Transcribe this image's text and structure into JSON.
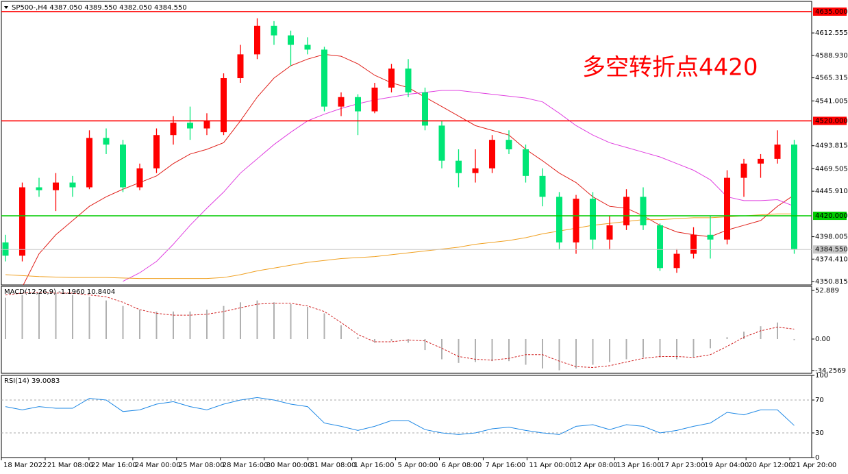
{
  "chart_data": [
    {
      "type": "candlestick",
      "title": "SP500-,H4  4387.050 4389.550 4382.050 4384.550",
      "annotation": "多空转折点4420",
      "up_color": "#ff0000",
      "down_color": "#00e676",
      "open": [
        4392,
        4378,
        4450,
        4447,
        4455,
        4450,
        4502,
        4495,
        4450,
        4470,
        4505,
        4518,
        4512,
        4508,
        4565,
        4590,
        4620,
        4610,
        4600,
        4595,
        4535,
        4545,
        4530,
        4555,
        4575,
        4550,
        4515,
        4478,
        4465,
        4470,
        4500,
        4490,
        4462,
        4440,
        4392,
        4438,
        4395,
        4410,
        4440,
        4410,
        4365,
        4380,
        4400,
        4395,
        4460,
        4475,
        4480,
        4495
      ],
      "high": [
        4400,
        4455,
        4460,
        4465,
        4462,
        4510,
        4512,
        4500,
        4475,
        4512,
        4525,
        4535,
        4528,
        4570,
        4600,
        4628,
        4625,
        4615,
        4608,
        4598,
        4550,
        4548,
        4560,
        4580,
        4585,
        4555,
        4520,
        4490,
        4490,
        4505,
        4510,
        4495,
        4470,
        4445,
        4442,
        4445,
        4420,
        4448,
        4450,
        4412,
        4385,
        4408,
        4420,
        4468,
        4480,
        4485,
        4510,
        4500
      ],
      "low": [
        4372,
        4372,
        4440,
        4425,
        4440,
        4448,
        4485,
        4445,
        4447,
        4465,
        4495,
        4500,
        4505,
        4505,
        4560,
        4585,
        4600,
        4578,
        4590,
        4530,
        4525,
        4505,
        4528,
        4550,
        4545,
        4510,
        4470,
        4450,
        4455,
        4465,
        4485,
        4455,
        4430,
        4385,
        4380,
        4385,
        4385,
        4405,
        4405,
        4362,
        4360,
        4375,
        4375,
        4390,
        4440,
        4460,
        4475,
        4380
      ],
      "close": [
        4378,
        4450,
        4447,
        4455,
        4450,
        4502,
        4495,
        4450,
        4470,
        4505,
        4518,
        4512,
        4520,
        4565,
        4590,
        4620,
        4610,
        4600,
        4595,
        4535,
        4545,
        4530,
        4555,
        4575,
        4550,
        4515,
        4478,
        4465,
        4470,
        4500,
        4490,
        4462,
        4440,
        4392,
        4438,
        4395,
        4410,
        4440,
        4410,
        4365,
        4380,
        4400,
        4395,
        4460,
        4475,
        4480,
        4495,
        4385
      ],
      "lines": [
        {
          "color": "#e0201a",
          "values": [
            null,
            4345,
            4380,
            4400,
            4415,
            4430,
            4440,
            4448,
            4455,
            4462,
            4475,
            4485,
            4490,
            4497,
            4520,
            4545,
            4565,
            4578,
            4585,
            4590,
            4588,
            4580,
            4568,
            4560,
            4555,
            4545,
            4535,
            4525,
            4515,
            4510,
            4505,
            4490,
            4478,
            4465,
            4455,
            4440,
            4430,
            4428,
            4420,
            4410,
            4403,
            4400,
            4398,
            4405,
            4410,
            4415,
            4430,
            4442
          ]
        },
        {
          "color": "#e040e0",
          "values": [
            null,
            null,
            null,
            null,
            null,
            null,
            null,
            4351,
            4360,
            4372,
            4390,
            4410,
            4428,
            4445,
            4465,
            4480,
            4495,
            4508,
            4520,
            4527,
            4533,
            4538,
            4542,
            4545,
            4548,
            4550,
            4552,
            4552,
            4550,
            4548,
            4546,
            4544,
            4540,
            4528,
            4515,
            4505,
            4497,
            4492,
            4487,
            4482,
            4475,
            4468,
            4458,
            4440,
            4436,
            4436,
            4437,
            4430
          ]
        },
        {
          "color": "#f0a020",
          "values": [
            4358,
            4357,
            4356,
            4355.5,
            4355,
            4355,
            4355,
            4354.5,
            4354,
            4354,
            4354,
            4354,
            4354,
            4355,
            4358,
            4362,
            4365,
            4368,
            4371,
            4373,
            4375,
            4376,
            4377,
            4379,
            4381,
            4383,
            4385,
            4387,
            4390,
            4392,
            4394,
            4397,
            4401,
            4404,
            4407,
            4410,
            4412,
            4414,
            4416,
            4416,
            4417,
            4418,
            4418,
            4419,
            4420,
            4421,
            4422,
            4422
          ]
        }
      ],
      "levels": [
        {
          "value": 4635,
          "label": "4635.000",
          "color": "#ff0000",
          "text_color": "#ffffff"
        },
        {
          "value": 4520,
          "label": "4520.000",
          "color": "#ff0000",
          "text_color": "#ffffff"
        },
        {
          "value": 4420,
          "label": "4420.000",
          "color": "#00cc00",
          "text_color": "#ffffff"
        },
        {
          "value": 4384.55,
          "label": "4384.550",
          "color": "#c8c8c8",
          "text_color": "#000000"
        }
      ],
      "ylim": [
        4347.2,
        4645.8
      ],
      "yticks": [
        4612.555,
        {
          "value": 4588.93,
          "label": "4588.930"
        },
        4565.315,
        4541.005,
        4493.815,
        4469.505,
        {
          "value": 4445.91,
          "label": "4445.910"
        },
        4398.005,
        {
          "value": 4374.41,
          "label": "4374.410"
        },
        4350.815
      ],
      "time_labels": [
        "18 Mar 2022",
        "21 Mar 08:00",
        "22 Mar 16:00",
        "24 Mar 00:00",
        "25 Mar 08:00",
        "28 Mar 16:00",
        "30 Mar 00:00",
        "31 Mar 08:00",
        "1 Apr 16:00",
        "5 Apr 00:00",
        "6 Apr 08:00",
        "7 Apr 16:00",
        "11 Apr 00:00",
        "12 Apr 08:00",
        "13 Apr 16:00",
        "17 Apr 23:00",
        "19 Apr 04:00",
        "20 Apr 12:00",
        "21 Apr 20:00"
      ]
    },
    {
      "type": "macd",
      "title": "MACD(12,26,9) -1.1960 10.8404",
      "histogram": {
        "color": "#b0b0b0",
        "values": [
          45,
          48,
          50,
          50,
          48,
          46,
          42,
          36,
          32,
          30,
          30,
          30,
          32,
          36,
          40,
          42,
          40,
          38,
          35,
          28,
          15,
          2,
          -4,
          -2,
          -4,
          -12,
          -22,
          -26,
          -25,
          -24,
          -24,
          -28,
          -32,
          -34,
          -32,
          -28,
          -25,
          -22,
          -20,
          -20,
          -22,
          -20,
          -10,
          2,
          8,
          14,
          18,
          -1.196
        ]
      },
      "signal": {
        "color": "#d02020",
        "values": [
          48,
          50,
          51,
          50,
          50,
          48,
          46,
          40,
          32,
          28,
          26,
          26,
          27,
          30,
          34,
          38,
          39,
          39,
          36,
          30,
          18,
          5,
          -3,
          -3,
          -1,
          -2,
          -10,
          -19,
          -22,
          -23,
          -21,
          -17,
          -17,
          -24,
          -30,
          -31,
          -29,
          -25,
          -21,
          -19,
          -19,
          -20,
          -17,
          -8,
          2,
          9,
          13,
          10.8404
        ]
      },
      "ylim": [
        -37.3,
        57.4
      ],
      "yticks": [
        52.889,
        {
          "value": 0,
          "label": "0.00"
        },
        -34.2569
      ]
    },
    {
      "type": "line",
      "title": "RSI(14) 39.0083",
      "color": "#1e88e5",
      "values": [
        62,
        58,
        62,
        60,
        60,
        72,
        70,
        56,
        58,
        65,
        68,
        62,
        58,
        65,
        70,
        73,
        70,
        65,
        62,
        42,
        38,
        33,
        38,
        45,
        45,
        34,
        30,
        28,
        30,
        35,
        37,
        33,
        30,
        28,
        38,
        40,
        34,
        40,
        38,
        30,
        33,
        38,
        42,
        55,
        52,
        58,
        58,
        39.0083
      ],
      "ylim": [
        0,
        100
      ],
      "yticks": [
        100,
        70,
        30,
        0
      ]
    }
  ]
}
